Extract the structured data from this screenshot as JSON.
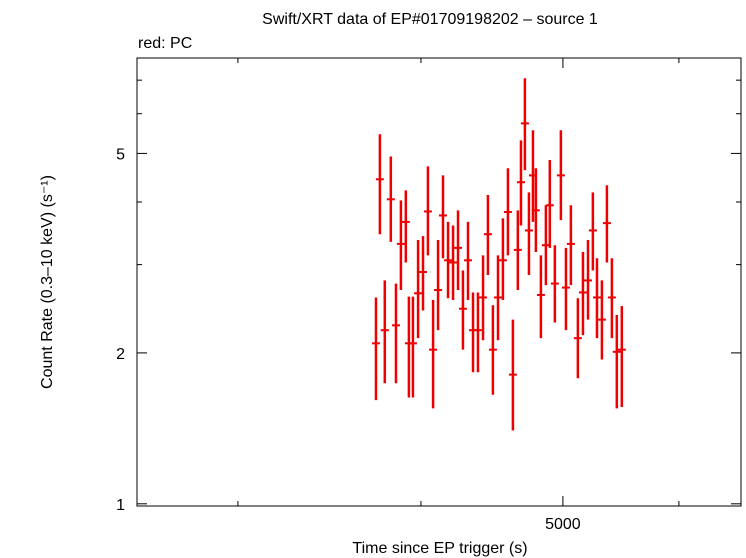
{
  "chart_data": {
    "type": "errorbar",
    "title": "Swift/XRT data of EP#01709198202 – source 1",
    "subtitle": "red: PC",
    "x_label": "Time since EP trigger (s)",
    "y_label": "Count Rate (0.3–10 keV) (s⁻¹)",
    "xscale": "log",
    "yscale": "log",
    "xlim": [
      2560,
      6615
    ],
    "ylim": [
      0.99,
      7.75
    ],
    "xticks": [
      5000
    ],
    "xminor": [
      3000,
      4000,
      6000
    ],
    "yticks": [
      1,
      2,
      5
    ],
    "yminor": [
      3,
      4,
      6,
      7
    ],
    "series": [
      {
        "name": "PC",
        "color": "#ee0000",
        "x": [
          3727,
          3750,
          3779,
          3815,
          3846,
          3876,
          3906,
          3925,
          3950,
          3982,
          4013,
          4044,
          4077,
          4109,
          4141,
          4174,
          4207,
          4240,
          4273,
          4307,
          4341,
          4375,
          4410,
          4444,
          4479,
          4515,
          4550,
          4586,
          4622,
          4658,
          4681,
          4710,
          4740,
          4770,
          4792,
          4830,
          4868,
          4898,
          4937,
          4984,
          5024,
          5063,
          5119,
          5160,
          5201,
          5241,
          5275,
          5316,
          5358,
          5400,
          5442,
          5485
        ],
        "values": [
          2.09,
          4.44,
          2.22,
          4.05,
          2.27,
          3.3,
          3.65,
          2.09,
          2.09,
          2.63,
          2.9,
          3.83,
          2.03,
          2.67,
          3.76,
          3.06,
          3.03,
          3.24,
          2.45,
          3.06,
          2.22,
          2.22,
          2.58,
          3.45,
          2.03,
          2.58,
          3.06,
          3.82,
          1.81,
          3.21,
          4.38,
          5.74,
          3.51,
          4.52,
          3.85,
          2.61,
          3.28,
          3.94,
          2.75,
          4.52,
          2.7,
          3.3,
          2.14,
          2.64,
          2.79,
          3.51,
          2.58,
          2.33,
          3.63,
          2.58,
          2.01,
          2.03
        ],
        "lower": [
          1.61,
          3.45,
          1.74,
          3.33,
          1.74,
          2.67,
          3.03,
          1.63,
          1.63,
          2.14,
          2.43,
          3.13,
          1.55,
          2.22,
          3.09,
          2.57,
          2.55,
          2.67,
          2.03,
          2.55,
          1.83,
          1.83,
          2.12,
          2.86,
          1.65,
          2.12,
          2.55,
          3.13,
          1.4,
          2.67,
          3.59,
          4.63,
          2.86,
          3.65,
          3.18,
          2.14,
          2.73,
          3.24,
          2.3,
          3.68,
          2.22,
          2.73,
          1.78,
          2.17,
          2.33,
          2.92,
          2.14,
          1.94,
          3.03,
          2.14,
          1.55,
          1.56
        ],
        "upper": [
          2.58,
          5.46,
          2.79,
          4.93,
          2.75,
          4.03,
          4.22,
          2.59,
          2.59,
          3.36,
          3.42,
          4.71,
          2.55,
          3.36,
          4.52,
          3.65,
          3.59,
          3.85,
          2.92,
          3.65,
          2.64,
          2.64,
          3.13,
          4.13,
          2.49,
          3.13,
          3.71,
          4.67,
          2.33,
          3.85,
          5.31,
          7.06,
          4.18,
          5.56,
          4.67,
          3.13,
          3.94,
          4.85,
          3.28,
          5.56,
          3.24,
          3.94,
          2.57,
          3.18,
          3.36,
          4.18,
          3.09,
          2.79,
          4.32,
          3.09,
          2.38,
          2.48
        ]
      }
    ]
  }
}
